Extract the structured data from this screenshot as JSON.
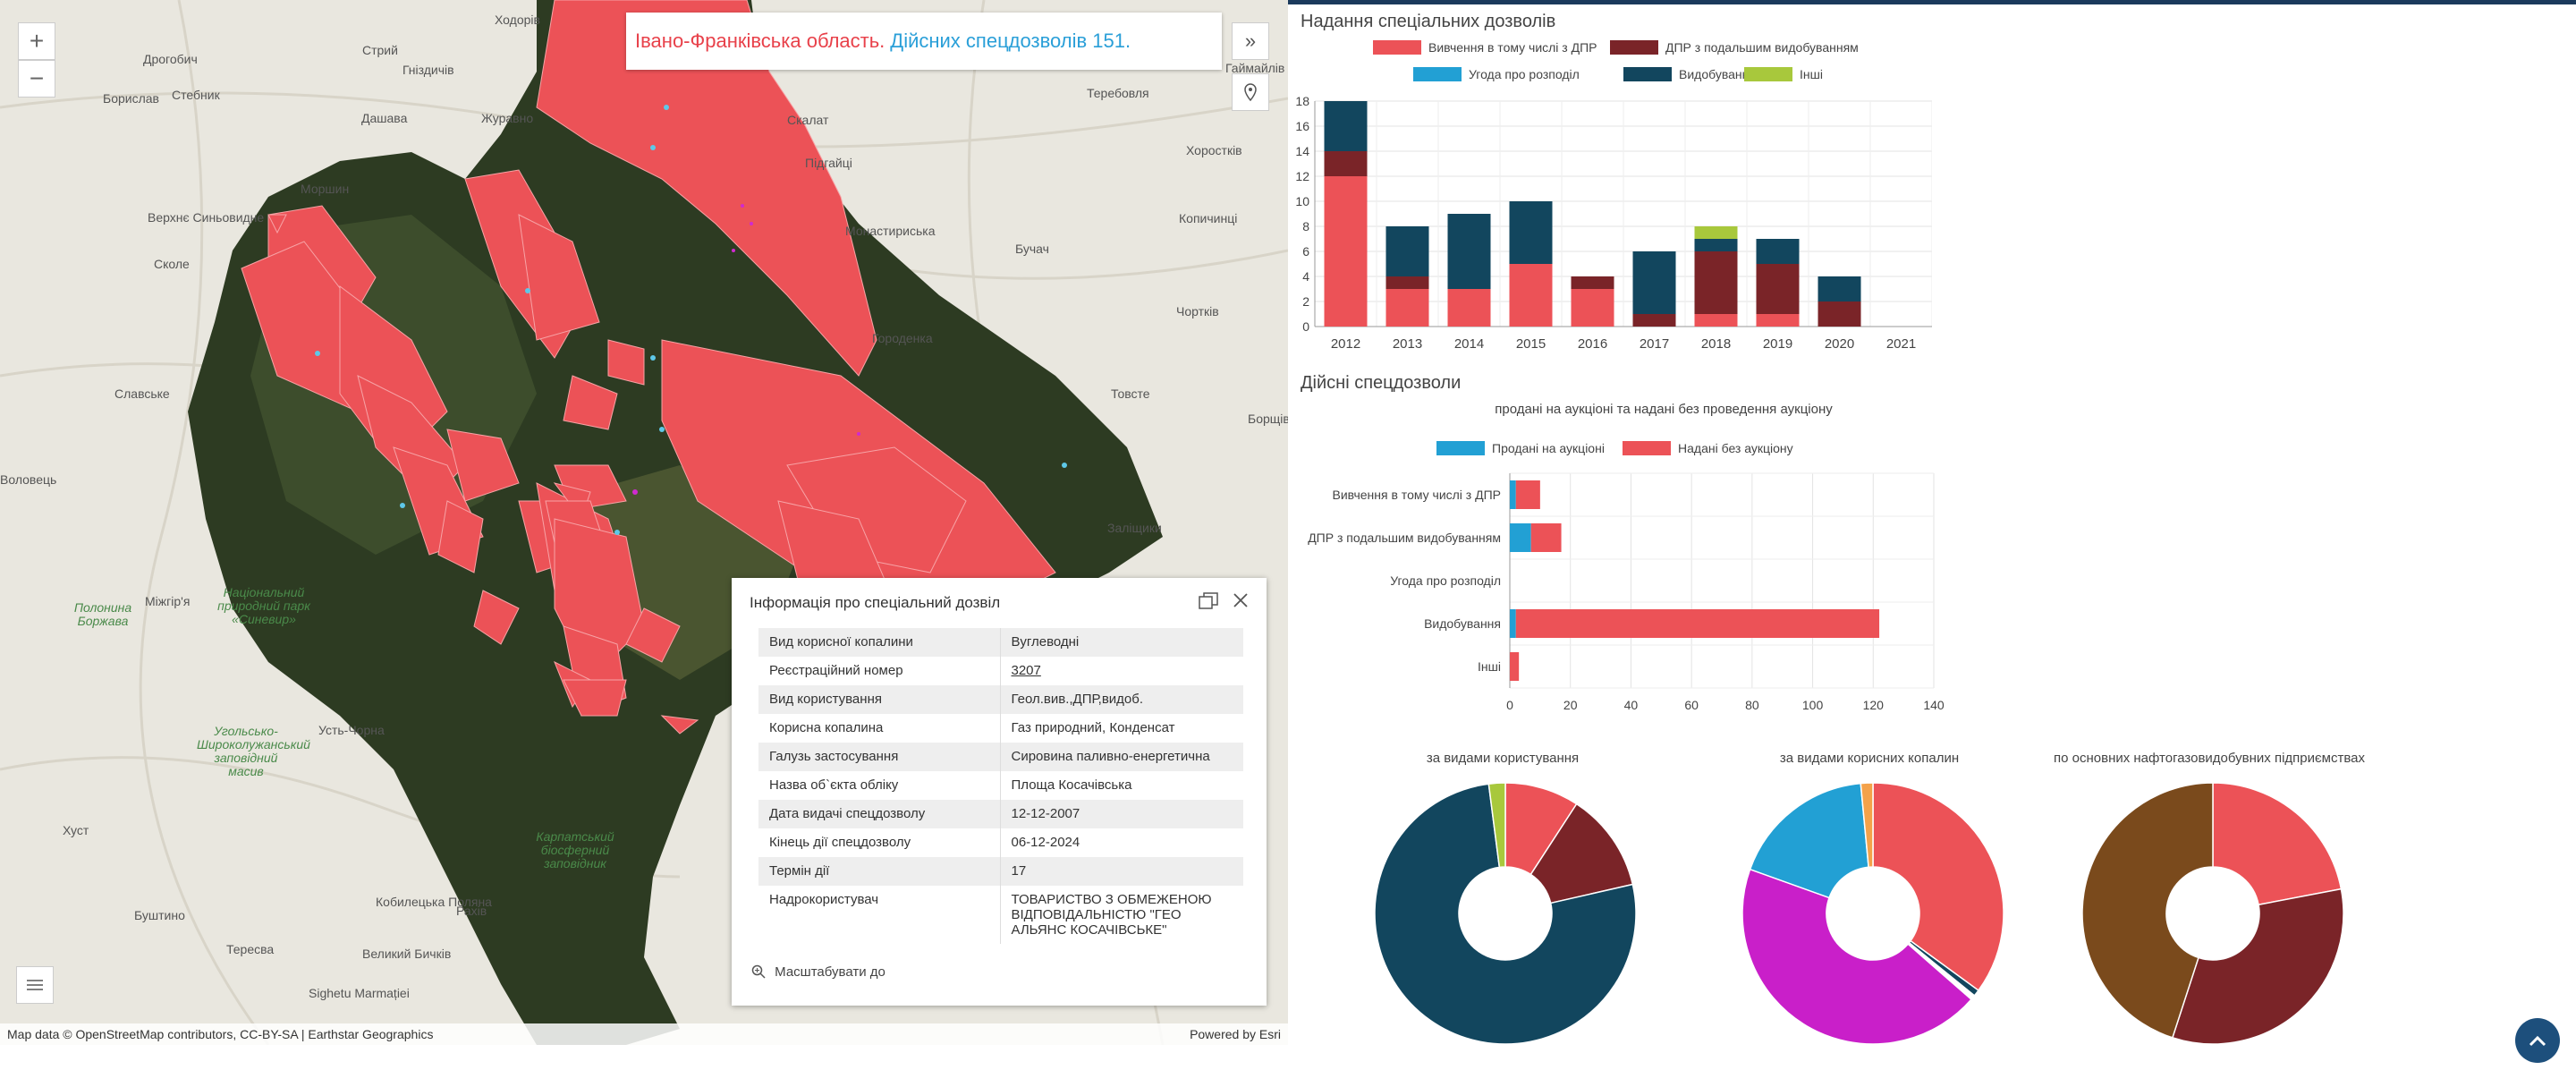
{
  "map": {
    "banner_region": "Івано-Франківська область.",
    "banner_count": "Дійсних спецдозволів 151.",
    "zoom_in": "+",
    "zoom_out": "−",
    "attribution": "Map data © OpenStreetMap contributors, CC-BY-SA | Earthstar Geographics",
    "powered_by": "Powered by Esri",
    "places": [
      "Ходорів",
      "Дрогобич",
      "Стрий",
      "Гніздичів",
      "Борислав",
      "Стебник",
      "Дашава",
      "Журавно",
      "Теребовля",
      "Сколе",
      "Моршин",
      "Скалат",
      "Підгайці",
      "Хоростків",
      "Верхнє Синьовидне",
      "Монастириська",
      "Копичинці",
      "Бучач",
      "Славське",
      "Чортків",
      "Городенка",
      "Товсте",
      "Воловець",
      "Заліщики",
      "Міжгір'я",
      "Полонина Боржава",
      "Усть-Чорна",
      "Хуст",
      "Буштино",
      "Тересва",
      "Кобилецька Поляна",
      "Рахів",
      "Великий Бичків",
      "Sighetu Marmației",
      "Гаймайлів",
      "Борщів",
      "Національний природний парк «Синевир»",
      "Угольсько-Широколужанський заповідний масив",
      "Карпатський біосферний заповідник"
    ]
  },
  "popup": {
    "title": "Інформація про спеціальний дозвіл",
    "rows": [
      {
        "k": "Вид корисної копалини",
        "v": "Вуглеводні"
      },
      {
        "k": "Реєстраційний номер",
        "v": "3207"
      },
      {
        "k": "Вид користування",
        "v": "Геол.вив.,ДПР,видоб."
      },
      {
        "k": "Корисна копалина",
        "v": "Газ природний, Конденсат"
      },
      {
        "k": "Галузь застосування",
        "v": "Сировина паливно-енергетична"
      },
      {
        "k": "Назва об`єкта обліку",
        "v": "Площа Косачівська"
      },
      {
        "k": "Дата видачі спецдозволу",
        "v": "12-12-2007"
      },
      {
        "k": "Кінець дії спецдозволу",
        "v": "06-12-2024"
      },
      {
        "k": "Термін дії",
        "v": "17"
      },
      {
        "k": "Надрокористувач",
        "v": "ТОВАРИСТВО З ОБМЕЖЕНОЮ ВІДПОВІДАЛЬНІСТЮ \"ГЕО АЛЬЯНС КОСАЧІВСЬКЕ\""
      }
    ],
    "zoom_label": "Масштабувати до"
  },
  "panel": {
    "section1_title": "Надання спеціальних дозволів",
    "section2_title": "Дійсні спецдозволи",
    "section2_subtitle": "продані на аукціоні та надані без проведення аукціону",
    "pie_titles": [
      "за видами користування",
      "за видами корисних копалин",
      "по основних нафтогазовидобувних підприємствах"
    ]
  },
  "colors": {
    "red": "#ec5257",
    "darkred": "#7a2428",
    "blue": "#22a0d4",
    "navy": "#12465e",
    "green": "#a8c83c",
    "magenta": "#c91fc9",
    "orange": "#f4a24a",
    "brown": "#7a4a1c"
  },
  "chart_data": [
    {
      "type": "bar",
      "stacked": true,
      "categories": [
        "2012",
        "2013",
        "2014",
        "2015",
        "2016",
        "2017",
        "2018",
        "2019",
        "2020",
        "2021"
      ],
      "series": [
        {
          "name": "Вивчення в тому числі з ДПР",
          "color": "#ec5257",
          "values": [
            12,
            3,
            3,
            5,
            3,
            0,
            1,
            1,
            0,
            0
          ]
        },
        {
          "name": "ДПР з подальшим видобуванням",
          "color": "#7a2428",
          "values": [
            2,
            1,
            0,
            0,
            1,
            1,
            5,
            4,
            2,
            0
          ]
        },
        {
          "name": "Угода про розподіл",
          "color": "#22a0d4",
          "values": [
            0,
            0,
            0,
            0,
            0,
            0,
            0,
            0,
            0,
            0
          ]
        },
        {
          "name": "Видобування",
          "color": "#12465e",
          "values": [
            4,
            4,
            6,
            5,
            0,
            5,
            1,
            2,
            2,
            0
          ]
        },
        {
          "name": "Інші",
          "color": "#a8c83c",
          "values": [
            0,
            0,
            0,
            0,
            0,
            0,
            1,
            0,
            0,
            0
          ]
        }
      ],
      "ylim": [
        0,
        18
      ],
      "yticks": [
        0,
        2,
        4,
        6,
        8,
        10,
        12,
        14,
        16,
        18
      ]
    },
    {
      "type": "bar",
      "orientation": "horizontal",
      "stacked": true,
      "categories": [
        "Вивчення в тому числі з ДПР",
        "ДПР з подальшим видобуванням",
        "Угода про розподіл",
        "Видобування",
        "Інші"
      ],
      "series": [
        {
          "name": "Продані на аукціоні",
          "color": "#22a0d4",
          "values": [
            2,
            7,
            0,
            2,
            0
          ]
        },
        {
          "name": "Надані без аукціону",
          "color": "#ec5257",
          "values": [
            8,
            10,
            0,
            120,
            3
          ]
        }
      ],
      "xlim": [
        0,
        140
      ],
      "xticks": [
        0,
        20,
        40,
        60,
        80,
        100,
        120,
        140
      ]
    },
    {
      "type": "pie",
      "title": "за видами користування",
      "values": [
        9,
        12,
        75,
        2
      ],
      "colors": [
        "#ec5257",
        "#7a2428",
        "#12465e",
        "#a8c83c"
      ]
    },
    {
      "type": "pie",
      "title": "за видами корисних копалин",
      "values": [
        35,
        0.8,
        0.6,
        44,
        18,
        1.5
      ],
      "colors": [
        "#ec5257",
        "#12465e",
        "#ffffff",
        "#c91fc9",
        "#22a0d4",
        "#f4a24a"
      ]
    },
    {
      "type": "pie",
      "title": "по основних нафтогазовидобувних підприємствах",
      "values": [
        22,
        33,
        45
      ],
      "colors": [
        "#ec5257",
        "#7a2428",
        "#7a4a1c"
      ]
    }
  ]
}
